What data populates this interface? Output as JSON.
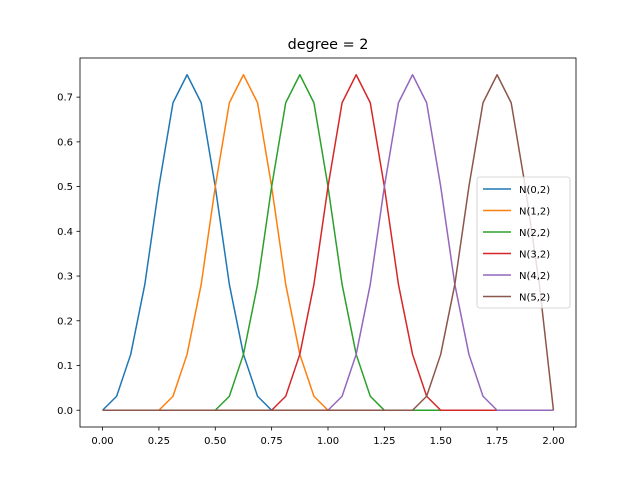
{
  "chart_data": {
    "type": "line",
    "title": "degree = 2",
    "xlabel": "",
    "ylabel": "",
    "xlim": [
      -0.1,
      2.1
    ],
    "ylim": [
      -0.0375,
      0.7875
    ],
    "x_ticks": [
      0.0,
      0.25,
      0.5,
      0.75,
      1.0,
      1.25,
      1.5,
      1.75,
      2.0
    ],
    "x_tick_labels": [
      "0.00",
      "0.25",
      "0.50",
      "0.75",
      "1.00",
      "1.25",
      "1.50",
      "1.75",
      "2.00"
    ],
    "y_ticks": [
      0.0,
      0.1,
      0.2,
      0.3,
      0.4,
      0.5,
      0.6,
      0.7
    ],
    "y_tick_labels": [
      "0.0",
      "0.1",
      "0.2",
      "0.3",
      "0.4",
      "0.5",
      "0.6",
      "0.7"
    ],
    "grid": false,
    "legend_position": "center-right",
    "series": [
      {
        "name": "N(0,2)",
        "color": "#1f77b4",
        "x": [
          0.0,
          0.0625,
          0.125,
          0.1875,
          0.25,
          0.3125,
          0.375,
          0.4375,
          0.5,
          0.5625,
          0.625,
          0.6875,
          0.75,
          0.8125,
          0.875,
          0.9375,
          1.0,
          1.0625,
          1.125,
          1.1875,
          1.25,
          1.3125,
          1.375,
          1.4375,
          1.5,
          1.5625,
          1.625,
          1.6875,
          1.75,
          1.8125,
          1.875,
          1.9375,
          2.0
        ],
        "y": [
          0.0,
          0.03125,
          0.125,
          0.28125,
          0.5,
          0.6875,
          0.75,
          0.6875,
          0.5,
          0.28125,
          0.125,
          0.03125,
          0.0,
          0.0,
          0.0,
          0.0,
          0.0,
          0.0,
          0.0,
          0.0,
          0.0,
          0.0,
          0.0,
          0.0,
          0.0,
          0.0,
          0.0,
          0.0,
          0.0,
          0.0,
          0.0,
          0.0,
          0.0
        ]
      },
      {
        "name": "N(1,2)",
        "color": "#ff7f0e",
        "x": [
          0.0,
          0.0625,
          0.125,
          0.1875,
          0.25,
          0.3125,
          0.375,
          0.4375,
          0.5,
          0.5625,
          0.625,
          0.6875,
          0.75,
          0.8125,
          0.875,
          0.9375,
          1.0,
          1.0625,
          1.125,
          1.1875,
          1.25,
          1.3125,
          1.375,
          1.4375,
          1.5,
          1.5625,
          1.625,
          1.6875,
          1.75,
          1.8125,
          1.875,
          1.9375,
          2.0
        ],
        "y": [
          0.0,
          0.0,
          0.0,
          0.0,
          0.0,
          0.03125,
          0.125,
          0.28125,
          0.5,
          0.6875,
          0.75,
          0.6875,
          0.5,
          0.28125,
          0.125,
          0.03125,
          0.0,
          0.0,
          0.0,
          0.0,
          0.0,
          0.0,
          0.0,
          0.0,
          0.0,
          0.0,
          0.0,
          0.0,
          0.0,
          0.0,
          0.0,
          0.0,
          0.0
        ]
      },
      {
        "name": "N(2,2)",
        "color": "#2ca02c",
        "x": [
          0.0,
          0.0625,
          0.125,
          0.1875,
          0.25,
          0.3125,
          0.375,
          0.4375,
          0.5,
          0.5625,
          0.625,
          0.6875,
          0.75,
          0.8125,
          0.875,
          0.9375,
          1.0,
          1.0625,
          1.125,
          1.1875,
          1.25,
          1.3125,
          1.375,
          1.4375,
          1.5,
          1.5625,
          1.625,
          1.6875,
          1.75,
          1.8125,
          1.875,
          1.9375,
          2.0
        ],
        "y": [
          0.0,
          0.0,
          0.0,
          0.0,
          0.0,
          0.0,
          0.0,
          0.0,
          0.0,
          0.03125,
          0.125,
          0.28125,
          0.5,
          0.6875,
          0.75,
          0.6875,
          0.5,
          0.28125,
          0.125,
          0.03125,
          0.0,
          0.0,
          0.0,
          0.0,
          0.0,
          0.0,
          0.0,
          0.0,
          0.0,
          0.0,
          0.0,
          0.0,
          0.0
        ]
      },
      {
        "name": "N(3,2)",
        "color": "#d62728",
        "x": [
          0.0,
          0.0625,
          0.125,
          0.1875,
          0.25,
          0.3125,
          0.375,
          0.4375,
          0.5,
          0.5625,
          0.625,
          0.6875,
          0.75,
          0.8125,
          0.875,
          0.9375,
          1.0,
          1.0625,
          1.125,
          1.1875,
          1.25,
          1.3125,
          1.375,
          1.4375,
          1.5,
          1.5625,
          1.625,
          1.6875,
          1.75,
          1.8125,
          1.875,
          1.9375,
          2.0
        ],
        "y": [
          0.0,
          0.0,
          0.0,
          0.0,
          0.0,
          0.0,
          0.0,
          0.0,
          0.0,
          0.0,
          0.0,
          0.0,
          0.0,
          0.03125,
          0.125,
          0.28125,
          0.5,
          0.6875,
          0.75,
          0.6875,
          0.5,
          0.28125,
          0.125,
          0.03125,
          0.0,
          0.0,
          0.0,
          0.0,
          0.0,
          0.0,
          0.0,
          0.0,
          0.0
        ]
      },
      {
        "name": "N(4,2)",
        "color": "#9467bd",
        "x": [
          0.0,
          0.0625,
          0.125,
          0.1875,
          0.25,
          0.3125,
          0.375,
          0.4375,
          0.5,
          0.5625,
          0.625,
          0.6875,
          0.75,
          0.8125,
          0.875,
          0.9375,
          1.0,
          1.0625,
          1.125,
          1.1875,
          1.25,
          1.3125,
          1.375,
          1.4375,
          1.5,
          1.5625,
          1.625,
          1.6875,
          1.75,
          1.8125,
          1.875,
          1.9375,
          2.0
        ],
        "y": [
          0.0,
          0.0,
          0.0,
          0.0,
          0.0,
          0.0,
          0.0,
          0.0,
          0.0,
          0.0,
          0.0,
          0.0,
          0.0,
          0.0,
          0.0,
          0.0,
          0.0,
          0.03125,
          0.125,
          0.28125,
          0.5,
          0.6875,
          0.75,
          0.6875,
          0.5,
          0.28125,
          0.125,
          0.03125,
          0.0,
          0.0,
          0.0,
          0.0,
          0.0
        ]
      },
      {
        "name": "N(5,2)",
        "color": "#8c564b",
        "x": [
          0.0,
          0.0625,
          0.125,
          0.1875,
          0.25,
          0.3125,
          0.375,
          0.4375,
          0.5,
          0.5625,
          0.625,
          0.6875,
          0.75,
          0.8125,
          0.875,
          0.9375,
          1.0,
          1.0625,
          1.125,
          1.1875,
          1.25,
          1.3125,
          1.375,
          1.4375,
          1.5,
          1.5625,
          1.625,
          1.6875,
          1.75,
          1.8125,
          1.875,
          1.9375,
          2.0
        ],
        "y": [
          0.0,
          0.0,
          0.0,
          0.0,
          0.0,
          0.0,
          0.0,
          0.0,
          0.0,
          0.0,
          0.0,
          0.0,
          0.0,
          0.0,
          0.0,
          0.0,
          0.0,
          0.0,
          0.0,
          0.0,
          0.0,
          0.0,
          0.0,
          0.03125,
          0.125,
          0.28125,
          0.5,
          0.6875,
          0.75,
          0.6875,
          0.5,
          0.28125,
          0.0
        ]
      }
    ]
  }
}
